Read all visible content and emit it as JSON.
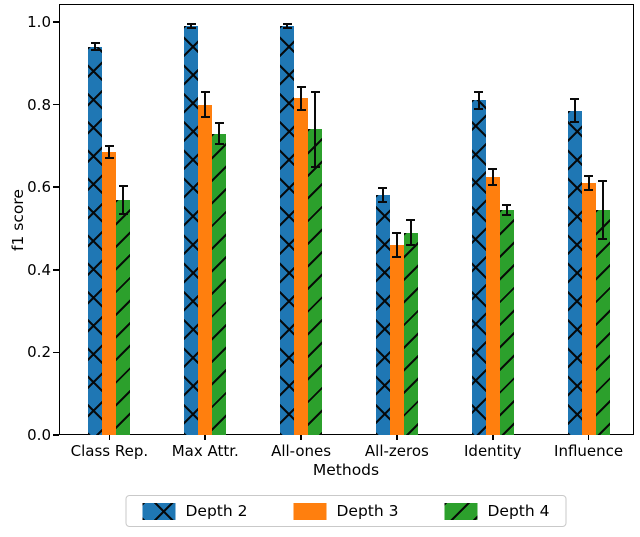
{
  "chart_data": {
    "type": "bar",
    "title": "",
    "xlabel": "Methods",
    "ylabel": "f1 score",
    "categories": [
      "Class Rep.",
      "Max Attr.",
      "All-ones",
      "All-zeros",
      "Identity",
      "Influence"
    ],
    "series": [
      {
        "name": "Depth 2",
        "color": "#1f77b4",
        "hatch": "x",
        "values": [
          0.94,
          0.99,
          0.99,
          0.58,
          0.81,
          0.785
        ],
        "errors": [
          0.008,
          0.005,
          0.005,
          0.017,
          0.02,
          0.028
        ]
      },
      {
        "name": "Depth 3",
        "color": "#ff7f0e",
        "hatch": "none",
        "values": [
          0.685,
          0.8,
          0.815,
          0.46,
          0.625,
          0.61
        ],
        "errors": [
          0.014,
          0.03,
          0.027,
          0.03,
          0.02,
          0.016
        ]
      },
      {
        "name": "Depth 4",
        "color": "#2ca02c",
        "hatch": "/",
        "values": [
          0.57,
          0.73,
          0.74,
          0.49,
          0.545,
          0.545
        ],
        "errors": [
          0.034,
          0.026,
          0.09,
          0.03,
          0.012,
          0.07
        ]
      }
    ],
    "ylim": [
      0.0,
      1.04
    ],
    "yticks": [
      0.0,
      0.2,
      0.4,
      0.6,
      0.8,
      1.0
    ],
    "error_bars": true,
    "grid": false,
    "legend_position": "bottom-center"
  }
}
